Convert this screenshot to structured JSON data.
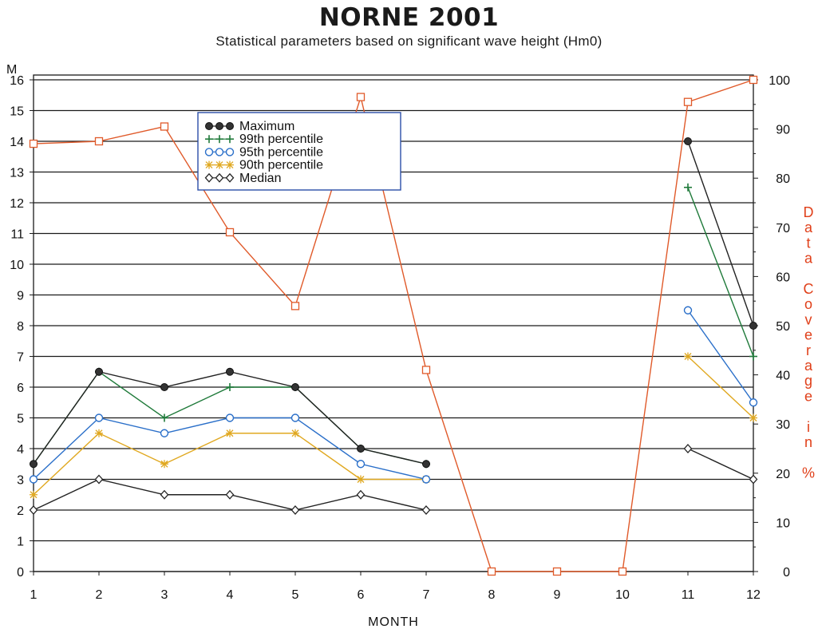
{
  "title": "NORNE 2001",
  "subtitle": "Statistical parameters based on significant wave height (Hm0)",
  "chart_data": {
    "type": "line",
    "title": "NORNE 2001",
    "subtitle": "Statistical parameters based on significant wave height (Hm0)",
    "xlabel": "MONTH",
    "ylabel": "M",
    "ylabel_right": "Data Coverage in %",
    "x": [
      1,
      2,
      3,
      4,
      5,
      6,
      7,
      8,
      9,
      10,
      11,
      12
    ],
    "xlim": [
      1,
      12
    ],
    "ylim": [
      0,
      16
    ],
    "yticks": [
      0,
      1,
      2,
      3,
      4,
      5,
      6,
      7,
      8,
      9,
      10,
      11,
      12,
      13,
      14,
      15,
      16
    ],
    "ylim_right": [
      0,
      100
    ],
    "yticks_right": [
      0,
      10,
      20,
      30,
      40,
      50,
      60,
      70,
      80,
      90,
      100
    ],
    "grid": true,
    "legend_position": "top-center",
    "series": [
      {
        "name": "Maximum",
        "axis": "left",
        "color": "#222222",
        "marker": "filled-circle",
        "values": [
          3.5,
          6.5,
          6.0,
          6.5,
          6.0,
          4.0,
          3.5,
          null,
          null,
          null,
          14.0,
          8.0
        ]
      },
      {
        "name": "99th percentile",
        "axis": "left",
        "color": "#1f7a3a",
        "marker": "plus",
        "values": [
          3.5,
          6.5,
          5.0,
          6.0,
          6.0,
          4.0,
          3.5,
          null,
          null,
          null,
          12.5,
          7.0
        ]
      },
      {
        "name": "95th percentile",
        "axis": "left",
        "color": "#2a6fc9",
        "marker": "open-circle",
        "values": [
          3.0,
          5.0,
          4.5,
          5.0,
          5.0,
          3.5,
          3.0,
          null,
          null,
          null,
          8.5,
          5.5
        ]
      },
      {
        "name": "90th percentile",
        "axis": "left",
        "color": "#e0a820",
        "marker": "asterisk",
        "values": [
          2.5,
          4.5,
          3.5,
          4.5,
          4.5,
          3.0,
          3.0,
          null,
          null,
          null,
          7.0,
          5.0
        ]
      },
      {
        "name": "Median",
        "axis": "left",
        "color": "#222222",
        "marker": "diamond",
        "values": [
          2.0,
          3.0,
          2.5,
          2.5,
          2.0,
          2.5,
          2.0,
          null,
          null,
          null,
          4.0,
          3.0
        ]
      },
      {
        "name": "",
        "axis": "right",
        "color": "#e05a2a",
        "marker": "open-square",
        "values": [
          87,
          87.5,
          90.5,
          69,
          54,
          96.5,
          41,
          0,
          0,
          0,
          95.5,
          100
        ]
      }
    ]
  }
}
